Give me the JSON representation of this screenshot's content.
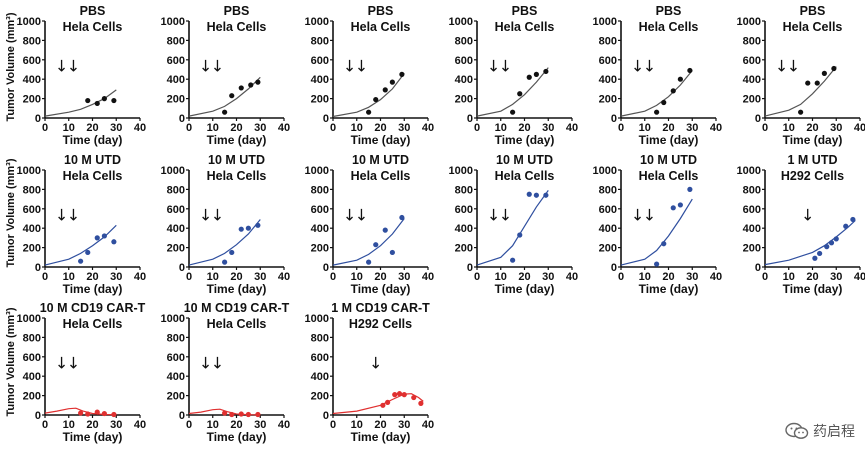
{
  "watermark": {
    "text": "药启程"
  },
  "y_axis_label": "Tumor Volume (mm³)",
  "chart_data": [
    {
      "type": "scatter",
      "title": "PBS",
      "subtitle": "Hela Cells",
      "xlabel": "Time (day)",
      "xlim": [
        0,
        40
      ],
      "ylim": [
        0,
        1000
      ],
      "xticks": [
        0,
        10,
        20,
        30,
        40
      ],
      "yticks": [
        0,
        200,
        400,
        600,
        800,
        1000
      ],
      "dose_days": [
        7,
        12
      ],
      "points": [
        [
          18,
          180
        ],
        [
          22,
          150
        ],
        [
          25,
          200
        ],
        [
          29,
          180
        ]
      ],
      "fit": [
        [
          0,
          20
        ],
        [
          10,
          60
        ],
        [
          15,
          90
        ],
        [
          20,
          140
        ],
        [
          25,
          200
        ],
        [
          30,
          290
        ]
      ],
      "color": "#111111",
      "fit_color": "#555555"
    },
    {
      "type": "scatter",
      "title": "PBS",
      "subtitle": "Hela Cells",
      "xlabel": "Time (day)",
      "xlim": [
        0,
        40
      ],
      "ylim": [
        0,
        1000
      ],
      "xticks": [
        0,
        10,
        20,
        30,
        40
      ],
      "yticks": [
        0,
        200,
        400,
        600,
        800,
        1000
      ],
      "dose_days": [
        7,
        12
      ],
      "points": [
        [
          15,
          60
        ],
        [
          18,
          230
        ],
        [
          22,
          310
        ],
        [
          26,
          340
        ],
        [
          29,
          370
        ]
      ],
      "fit": [
        [
          0,
          20
        ],
        [
          10,
          70
        ],
        [
          15,
          120
        ],
        [
          20,
          200
        ],
        [
          25,
          300
        ],
        [
          30,
          420
        ]
      ],
      "color": "#111111",
      "fit_color": "#555555"
    },
    {
      "type": "scatter",
      "title": "PBS",
      "subtitle": "Hela Cells",
      "xlabel": "Time (day)",
      "xlim": [
        0,
        40
      ],
      "ylim": [
        0,
        1000
      ],
      "xticks": [
        0,
        10,
        20,
        30,
        40
      ],
      "yticks": [
        0,
        200,
        400,
        600,
        800,
        1000
      ],
      "dose_days": [
        7,
        12
      ],
      "points": [
        [
          15,
          60
        ],
        [
          18,
          190
        ],
        [
          22,
          290
        ],
        [
          25,
          370
        ],
        [
          29,
          450
        ]
      ],
      "fit": [
        [
          0,
          15
        ],
        [
          10,
          60
        ],
        [
          15,
          110
        ],
        [
          20,
          190
        ],
        [
          25,
          300
        ],
        [
          30,
          460
        ]
      ],
      "color": "#111111",
      "fit_color": "#555555"
    },
    {
      "type": "scatter",
      "title": "PBS",
      "subtitle": "Hela Cells",
      "xlabel": "Time (day)",
      "xlim": [
        0,
        40
      ],
      "ylim": [
        0,
        1000
      ],
      "xticks": [
        0,
        10,
        20,
        30,
        40
      ],
      "yticks": [
        0,
        200,
        400,
        600,
        800,
        1000
      ],
      "dose_days": [
        7,
        12
      ],
      "points": [
        [
          15,
          60
        ],
        [
          18,
          250
        ],
        [
          22,
          420
        ],
        [
          25,
          450
        ],
        [
          29,
          480
        ]
      ],
      "fit": [
        [
          0,
          20
        ],
        [
          10,
          70
        ],
        [
          15,
          140
        ],
        [
          20,
          240
        ],
        [
          25,
          370
        ],
        [
          30,
          520
        ]
      ],
      "color": "#111111",
      "fit_color": "#555555"
    },
    {
      "type": "scatter",
      "title": "PBS",
      "subtitle": "Hela Cells",
      "xlabel": "Time (day)",
      "xlim": [
        0,
        40
      ],
      "ylim": [
        0,
        1000
      ],
      "xticks": [
        0,
        10,
        20,
        30,
        40
      ],
      "yticks": [
        0,
        200,
        400,
        600,
        800,
        1000
      ],
      "dose_days": [
        7,
        12
      ],
      "points": [
        [
          15,
          60
        ],
        [
          18,
          160
        ],
        [
          22,
          280
        ],
        [
          25,
          400
        ],
        [
          29,
          490
        ]
      ],
      "fit": [
        [
          0,
          20
        ],
        [
          10,
          70
        ],
        [
          15,
          130
        ],
        [
          20,
          220
        ],
        [
          25,
          340
        ],
        [
          30,
          490
        ]
      ],
      "color": "#111111",
      "fit_color": "#555555"
    },
    {
      "type": "scatter",
      "title": "PBS",
      "subtitle": "Hela Cells",
      "xlabel": "Time (day)",
      "xlim": [
        0,
        40
      ],
      "ylim": [
        0,
        1000
      ],
      "xticks": [
        0,
        10,
        20,
        30,
        40
      ],
      "yticks": [
        0,
        200,
        400,
        600,
        800,
        1000
      ],
      "dose_days": [
        7,
        12
      ],
      "points": [
        [
          15,
          60
        ],
        [
          18,
          360
        ],
        [
          22,
          360
        ],
        [
          25,
          460
        ],
        [
          29,
          510
        ]
      ],
      "fit": [
        [
          0,
          20
        ],
        [
          10,
          80
        ],
        [
          15,
          140
        ],
        [
          20,
          250
        ],
        [
          25,
          380
        ],
        [
          30,
          530
        ]
      ],
      "color": "#111111",
      "fit_color": "#555555"
    },
    {
      "type": "scatter",
      "title": "10 M UTD",
      "subtitle": "Hela Cells",
      "xlabel": "Time (day)",
      "xlim": [
        0,
        40
      ],
      "ylim": [
        0,
        1000
      ],
      "xticks": [
        0,
        10,
        20,
        30,
        40
      ],
      "yticks": [
        0,
        200,
        400,
        600,
        800,
        1000
      ],
      "dose_days": [
        7,
        12
      ],
      "points": [
        [
          15,
          60
        ],
        [
          18,
          150
        ],
        [
          22,
          300
        ],
        [
          25,
          320
        ],
        [
          29,
          260
        ]
      ],
      "fit": [
        [
          0,
          20
        ],
        [
          10,
          80
        ],
        [
          15,
          140
        ],
        [
          20,
          220
        ],
        [
          25,
          310
        ],
        [
          30,
          430
        ]
      ],
      "color": "#2f4f9f",
      "fit_color": "#2f4f9f"
    },
    {
      "type": "scatter",
      "title": "10 M UTD",
      "subtitle": "Hela Cells",
      "xlabel": "Time (day)",
      "xlim": [
        0,
        40
      ],
      "ylim": [
        0,
        1000
      ],
      "xticks": [
        0,
        10,
        20,
        30,
        40
      ],
      "yticks": [
        0,
        200,
        400,
        600,
        800,
        1000
      ],
      "dose_days": [
        7,
        12
      ],
      "points": [
        [
          15,
          50
        ],
        [
          18,
          150
        ],
        [
          22,
          390
        ],
        [
          25,
          400
        ],
        [
          29,
          430
        ]
      ],
      "fit": [
        [
          0,
          20
        ],
        [
          10,
          80
        ],
        [
          15,
          140
        ],
        [
          20,
          230
        ],
        [
          25,
          340
        ],
        [
          30,
          490
        ]
      ],
      "color": "#2f4f9f",
      "fit_color": "#2f4f9f"
    },
    {
      "type": "scatter",
      "title": "10 M UTD",
      "subtitle": "Hela Cells",
      "xlabel": "Time (day)",
      "xlim": [
        0,
        40
      ],
      "ylim": [
        0,
        1000
      ],
      "xticks": [
        0,
        10,
        20,
        30,
        40
      ],
      "yticks": [
        0,
        200,
        400,
        600,
        800,
        1000
      ],
      "dose_days": [
        7,
        12
      ],
      "points": [
        [
          15,
          50
        ],
        [
          18,
          230
        ],
        [
          22,
          380
        ],
        [
          25,
          150
        ],
        [
          29,
          510
        ]
      ],
      "fit": [
        [
          0,
          20
        ],
        [
          10,
          70
        ],
        [
          15,
          130
        ],
        [
          20,
          220
        ],
        [
          25,
          340
        ],
        [
          30,
          500
        ]
      ],
      "color": "#2f4f9f",
      "fit_color": "#2f4f9f"
    },
    {
      "type": "scatter",
      "title": "10 M UTD",
      "subtitle": "Hela Cells",
      "xlabel": "Time (day)",
      "xlim": [
        0,
        40
      ],
      "ylim": [
        0,
        1000
      ],
      "xticks": [
        0,
        10,
        20,
        30,
        40
      ],
      "yticks": [
        0,
        200,
        400,
        600,
        800,
        1000
      ],
      "dose_days": [
        7,
        12
      ],
      "points": [
        [
          15,
          70
        ],
        [
          18,
          330
        ],
        [
          22,
          750
        ],
        [
          25,
          740
        ],
        [
          29,
          740
        ]
      ],
      "fit": [
        [
          0,
          20
        ],
        [
          10,
          100
        ],
        [
          15,
          220
        ],
        [
          20,
          420
        ],
        [
          25,
          620
        ],
        [
          30,
          790
        ]
      ],
      "color": "#2f4f9f",
      "fit_color": "#2f4f9f"
    },
    {
      "type": "scatter",
      "title": "10 M UTD",
      "subtitle": "Hela Cells",
      "xlabel": "Time (day)",
      "xlim": [
        0,
        40
      ],
      "ylim": [
        0,
        1000
      ],
      "xticks": [
        0,
        10,
        20,
        30,
        40
      ],
      "yticks": [
        0,
        200,
        400,
        600,
        800,
        1000
      ],
      "dose_days": [
        7,
        12
      ],
      "points": [
        [
          15,
          30
        ],
        [
          18,
          240
        ],
        [
          22,
          610
        ],
        [
          25,
          640
        ],
        [
          29,
          800
        ]
      ],
      "fit": [
        [
          0,
          20
        ],
        [
          10,
          80
        ],
        [
          15,
          170
        ],
        [
          20,
          320
        ],
        [
          25,
          500
        ],
        [
          30,
          700
        ]
      ],
      "color": "#2f4f9f",
      "fit_color": "#2f4f9f"
    },
    {
      "type": "scatter",
      "title": "1 M UTD",
      "subtitle": "H292 Cells",
      "xlabel": "Time (day)",
      "xlim": [
        0,
        40
      ],
      "ylim": [
        0,
        1000
      ],
      "xticks": [
        0,
        10,
        20,
        30,
        40
      ],
      "yticks": [
        0,
        200,
        400,
        600,
        800,
        1000
      ],
      "dose_days": [
        18
      ],
      "points": [
        [
          21,
          90
        ],
        [
          23,
          140
        ],
        [
          26,
          210
        ],
        [
          28,
          250
        ],
        [
          30,
          290
        ],
        [
          34,
          420
        ],
        [
          37,
          490
        ]
      ],
      "fit": [
        [
          0,
          25
        ],
        [
          10,
          70
        ],
        [
          20,
          150
        ],
        [
          25,
          220
        ],
        [
          30,
          310
        ],
        [
          35,
          410
        ],
        [
          38,
          480
        ]
      ],
      "color": "#2f4f9f",
      "fit_color": "#2f4f9f"
    },
    {
      "type": "scatter",
      "title": "10 M CD19 CAR-T",
      "subtitle": "Hela Cells",
      "xlabel": "Time (day)",
      "xlim": [
        0,
        40
      ],
      "ylim": [
        0,
        1000
      ],
      "xticks": [
        0,
        10,
        20,
        30,
        40
      ],
      "yticks": [
        0,
        200,
        400,
        600,
        800,
        1000
      ],
      "dose_days": [
        7,
        12
      ],
      "points": [
        [
          15,
          20
        ],
        [
          18,
          10
        ],
        [
          22,
          30
        ],
        [
          25,
          15
        ],
        [
          29,
          5
        ]
      ],
      "fit": [
        [
          0,
          20
        ],
        [
          5,
          40
        ],
        [
          10,
          65
        ],
        [
          13,
          70
        ],
        [
          16,
          40
        ],
        [
          20,
          15
        ],
        [
          25,
          5
        ],
        [
          30,
          2
        ]
      ],
      "color": "#e03030",
      "fit_color": "#e03030"
    },
    {
      "type": "scatter",
      "title": "10 M CD19 CAR-T",
      "subtitle": "Hela Cells",
      "xlabel": "Time (day)",
      "xlim": [
        0,
        40
      ],
      "ylim": [
        0,
        1000
      ],
      "xticks": [
        0,
        10,
        20,
        30,
        40
      ],
      "yticks": [
        0,
        200,
        400,
        600,
        800,
        1000
      ],
      "dose_days": [
        7,
        12
      ],
      "points": [
        [
          15,
          20
        ],
        [
          18,
          5
        ],
        [
          22,
          10
        ],
        [
          25,
          5
        ],
        [
          29,
          5
        ]
      ],
      "fit": [
        [
          0,
          15
        ],
        [
          5,
          30
        ],
        [
          10,
          55
        ],
        [
          13,
          60
        ],
        [
          16,
          35
        ],
        [
          20,
          10
        ],
        [
          25,
          3
        ],
        [
          30,
          1
        ]
      ],
      "color": "#e03030",
      "fit_color": "#e03030"
    },
    {
      "type": "scatter",
      "title": "1 M CD19 CAR-T",
      "subtitle": "H292 Cells",
      "xlabel": "Time (day)",
      "xlim": [
        0,
        40
      ],
      "ylim": [
        0,
        1000
      ],
      "xticks": [
        0,
        10,
        20,
        30,
        40
      ],
      "yticks": [
        0,
        200,
        400,
        600,
        800,
        1000
      ],
      "dose_days": [
        18
      ],
      "points": [
        [
          21,
          100
        ],
        [
          23,
          130
        ],
        [
          26,
          210
        ],
        [
          28,
          220
        ],
        [
          30,
          210
        ],
        [
          34,
          180
        ],
        [
          37,
          120
        ]
      ],
      "fit": [
        [
          0,
          15
        ],
        [
          10,
          40
        ],
        [
          20,
          100
        ],
        [
          25,
          160
        ],
        [
          30,
          215
        ],
        [
          33,
          220
        ],
        [
          36,
          180
        ],
        [
          38,
          140
        ]
      ],
      "color": "#e03030",
      "fit_color": "#e03030"
    }
  ]
}
